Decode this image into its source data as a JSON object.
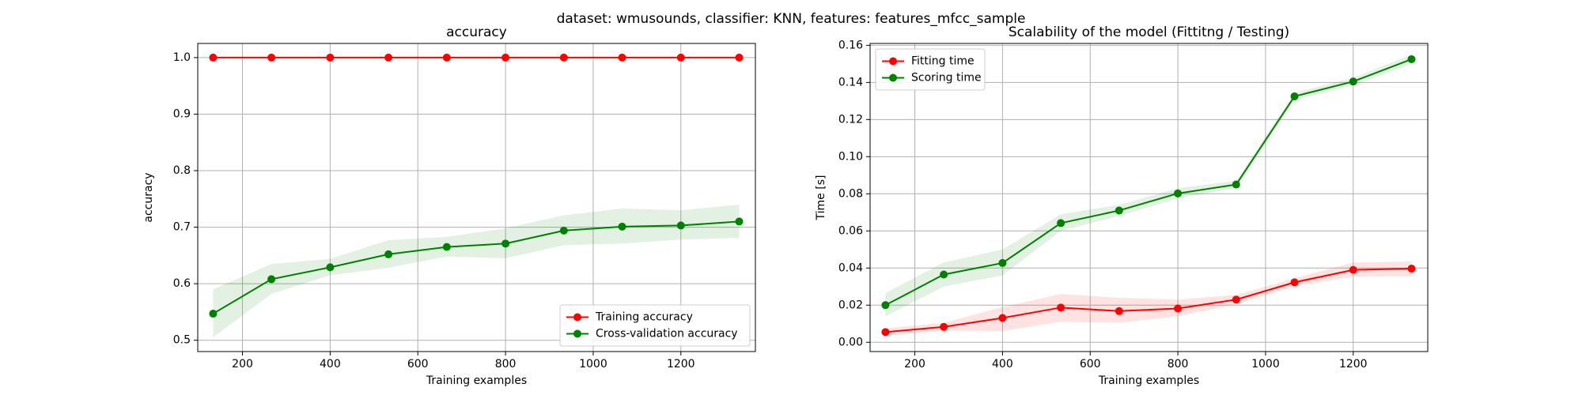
{
  "figure": {
    "suptitle": "dataset: wmusounds, classifier: KNN, features: features_mfcc_sample"
  },
  "chart_data": [
    {
      "type": "line",
      "title": "accuracy",
      "xlabel": "Training examples",
      "ylabel": "accuracy",
      "xlim": [
        98,
        1370
      ],
      "ylim": [
        0.48,
        1.025
      ],
      "xticks": [
        200,
        400,
        600,
        800,
        1000,
        1200
      ],
      "yticks": [
        0.5,
        0.6,
        0.7,
        0.8,
        0.9,
        1.0
      ],
      "ytick_format": 1,
      "grid": true,
      "legend_position": "lower-right",
      "x": [
        133,
        266,
        400,
        533,
        666,
        800,
        933,
        1066,
        1200,
        1333
      ],
      "series": [
        {
          "name": "Training accuracy",
          "color": "#ff0000",
          "values": [
            1.0,
            1.0,
            1.0,
            1.0,
            1.0,
            1.0,
            1.0,
            1.0,
            1.0,
            1.0
          ],
          "band_lower": [
            1.0,
            1.0,
            1.0,
            1.0,
            1.0,
            1.0,
            1.0,
            1.0,
            1.0,
            1.0
          ],
          "band_upper": [
            1.0,
            1.0,
            1.0,
            1.0,
            1.0,
            1.0,
            1.0,
            1.0,
            1.0,
            1.0
          ]
        },
        {
          "name": "Cross-validation accuracy",
          "color": "#008000",
          "values": [
            0.547,
            0.608,
            0.629,
            0.652,
            0.665,
            0.671,
            0.694,
            0.701,
            0.703,
            0.71
          ],
          "band_lower": [
            0.505,
            0.582,
            0.615,
            0.628,
            0.648,
            0.645,
            0.668,
            0.671,
            0.678,
            0.681
          ],
          "band_upper": [
            0.59,
            0.635,
            0.644,
            0.677,
            0.683,
            0.698,
            0.721,
            0.733,
            0.73,
            0.74
          ]
        }
      ]
    },
    {
      "type": "line",
      "title": "Scalability of the model (Fittitng / Testing)",
      "xlabel": "Training examples",
      "ylabel": "Time [s]",
      "xlim": [
        98,
        1370
      ],
      "ylim": [
        -0.005,
        0.161
      ],
      "xticks": [
        200,
        400,
        600,
        800,
        1000,
        1200
      ],
      "yticks": [
        0.0,
        0.02,
        0.04,
        0.06,
        0.08,
        0.1,
        0.12,
        0.14,
        0.16
      ],
      "ytick_format": 2,
      "grid": true,
      "legend_position": "upper-left",
      "x": [
        133,
        266,
        400,
        533,
        666,
        800,
        933,
        1066,
        1200,
        1333
      ],
      "series": [
        {
          "name": "Fitting time",
          "color": "#ff0000",
          "values": [
            0.0055,
            0.0083,
            0.0131,
            0.0187,
            0.0168,
            0.0182,
            0.023,
            0.0323,
            0.039,
            0.0397
          ],
          "band_lower": [
            0.0035,
            0.0062,
            0.006,
            0.011,
            0.0105,
            0.014,
            0.0205,
            0.03,
            0.0355,
            0.0355
          ],
          "band_upper": [
            0.0075,
            0.0105,
            0.019,
            0.026,
            0.024,
            0.023,
            0.0255,
            0.0345,
            0.043,
            0.0435
          ]
        },
        {
          "name": "Scoring time",
          "color": "#008000",
          "values": [
            0.02,
            0.0365,
            0.0427,
            0.0642,
            0.071,
            0.0802,
            0.085,
            0.1325,
            0.1405,
            0.1525
          ],
          "band_lower": [
            0.014,
            0.03,
            0.036,
            0.06,
            0.068,
            0.0775,
            0.083,
            0.1305,
            0.1385,
            0.15
          ],
          "band_upper": [
            0.0265,
            0.043,
            0.05,
            0.069,
            0.074,
            0.083,
            0.087,
            0.1345,
            0.1425,
            0.155
          ]
        }
      ]
    }
  ]
}
